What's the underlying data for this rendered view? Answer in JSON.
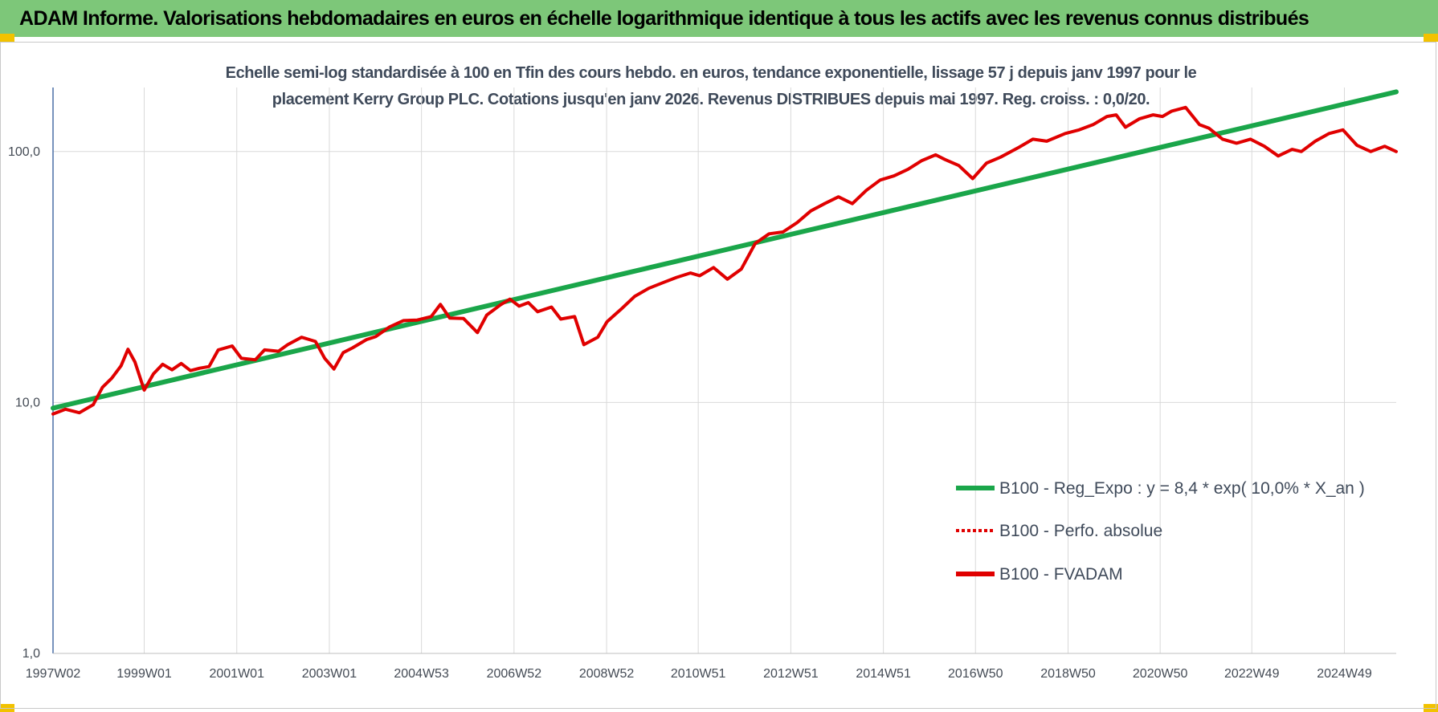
{
  "header": {
    "title": "ADAM Informe. Valorisations hebdomadaires en euros en échelle logarithmique identique à tous les actifs avec les revenus connus distribués"
  },
  "colors": {
    "header_band": "#7dc779",
    "corner_marks": "#f2c200",
    "trend_line": "#1aa64a",
    "fvadam_line": "#e00000",
    "perfo_line": "#e00000",
    "grid": "#d9d9d9",
    "text": "#3f4a5a"
  },
  "chart_data": {
    "type": "line",
    "title": "Echelle semi-log standardisée à 100 en Tfin des cours hebdo. en euros, tendance exponentielle, lissage 57 j depuis janv 1997 pour le placement Kerry Group PLC. Cotations jusqu'en janv 2026. Revenus DISTRIBUES depuis mai 1997. Reg. croiss. : 0,0/20.",
    "title_lines": [
      "Echelle semi-log standardisée à 100 en Tfin des cours hebdo. en euros, tendance exponentielle, lissage 57 j depuis janv 1997 pour le",
      "placement Kerry Group PLC. Cotations jusqu'en janv 2026. Revenus DISTRIBUES depuis mai 1997. Reg. croiss. : 0,0/20."
    ],
    "y_scale": "log",
    "ylim": [
      1,
      180
    ],
    "y_ticks": [
      1,
      10,
      100
    ],
    "y_tick_labels": [
      "1,0",
      "10,0",
      "100,0"
    ],
    "xlim": [
      1997.03,
      2026.05
    ],
    "x_ticks": [
      1997.03,
      1999.0,
      2001.0,
      2003.0,
      2004.99,
      2006.99,
      2008.99,
      2010.97,
      2012.97,
      2014.97,
      2016.96,
      2018.96,
      2020.95,
      2022.93,
      2024.93
    ],
    "x_tick_labels": [
      "1997W02",
      "1999W01",
      "2001W01",
      "2003W01",
      "2004W53",
      "2006W52",
      "2008W52",
      "2010W51",
      "2012W51",
      "2014W51",
      "2016W50",
      "2018W50",
      "2020W50",
      "2022W49",
      "2024W49"
    ],
    "grid": true,
    "legend_position": "bottom-right",
    "series": [
      {
        "name": "B100 - Reg_Expo : y = 8,4 * exp( 10,0% *  X_an )",
        "style": "solid",
        "color": "#1aa64a",
        "x": [
          1997.03,
          2026.05
        ],
        "y": [
          9.5,
          173
        ]
      },
      {
        "name": "B100 - Perfo. absolue",
        "style": "dotted",
        "color": "#e00000",
        "x": [],
        "y": []
      },
      {
        "name": "B100 - FVADAM",
        "style": "solid",
        "color": "#e00000",
        "x": [
          1997.03,
          1997.3,
          1997.6,
          1997.9,
          1998.1,
          1998.3,
          1998.5,
          1998.65,
          1998.8,
          1999.0,
          1999.2,
          1999.4,
          1999.6,
          1999.8,
          2000.0,
          2000.2,
          2000.4,
          2000.6,
          2000.9,
          2001.1,
          2001.4,
          2001.6,
          2001.9,
          2002.1,
          2002.4,
          2002.7,
          2002.9,
          2003.1,
          2003.3,
          2003.5,
          2003.8,
          2004.0,
          2004.3,
          2004.6,
          2004.9,
          2005.2,
          2005.4,
          2005.6,
          2005.9,
          2006.2,
          2006.4,
          2006.7,
          2006.9,
          2007.1,
          2007.3,
          2007.5,
          2007.8,
          2008.0,
          2008.3,
          2008.5,
          2008.8,
          2009.0,
          2009.3,
          2009.6,
          2009.9,
          2010.2,
          2010.5,
          2010.8,
          2011.0,
          2011.3,
          2011.6,
          2011.9,
          2012.2,
          2012.5,
          2012.8,
          2013.1,
          2013.4,
          2013.7,
          2014.0,
          2014.3,
          2014.6,
          2014.9,
          2015.2,
          2015.5,
          2015.8,
          2016.1,
          2016.3,
          2016.6,
          2016.9,
          2017.2,
          2017.5,
          2017.9,
          2018.2,
          2018.5,
          2018.9,
          2019.2,
          2019.5,
          2019.8,
          2020.0,
          2020.2,
          2020.5,
          2020.8,
          2021.0,
          2021.2,
          2021.5,
          2021.8,
          2022.0,
          2022.3,
          2022.6,
          2022.9,
          2023.2,
          2023.5,
          2023.8,
          2024.0,
          2024.3,
          2024.6,
          2024.9,
          2025.2,
          2025.5,
          2025.8,
          2026.05
        ],
        "y": [
          9.0,
          9.4,
          9.1,
          9.8,
          11.5,
          12.5,
          14.0,
          16.3,
          14.5,
          11.2,
          13.0,
          14.2,
          13.5,
          14.3,
          13.4,
          13.7,
          13.9,
          16.2,
          16.8,
          15.0,
          14.8,
          16.2,
          16.0,
          17.0,
          18.2,
          17.5,
          15.0,
          13.6,
          15.8,
          16.5,
          17.8,
          18.3,
          20.0,
          21.2,
          21.3,
          22.0,
          24.6,
          21.7,
          21.6,
          19.0,
          22.3,
          24.5,
          25.8,
          24.2,
          25.0,
          23.0,
          24.0,
          21.5,
          22.0,
          17.0,
          18.2,
          21.0,
          23.5,
          26.5,
          28.5,
          30.0,
          31.5,
          32.8,
          32.0,
          34.5,
          31.0,
          34.0,
          43.0,
          47.0,
          47.8,
          52.0,
          58.0,
          62.0,
          66.0,
          62.0,
          70.0,
          77.0,
          80.0,
          85.0,
          92.0,
          97.0,
          93.0,
          88.0,
          78.0,
          90.0,
          95.0,
          104.0,
          112.0,
          110.0,
          118.0,
          122.0,
          128.0,
          138.0,
          140.0,
          125.0,
          135.0,
          140.0,
          138.0,
          145.0,
          150.0,
          128.0,
          124.0,
          112.0,
          108.0,
          112.0,
          105.0,
          96.0,
          102.0,
          100.0,
          110.0,
          118.0,
          122.0,
          106.0,
          100.0,
          105.0,
          100.0
        ]
      }
    ]
  }
}
